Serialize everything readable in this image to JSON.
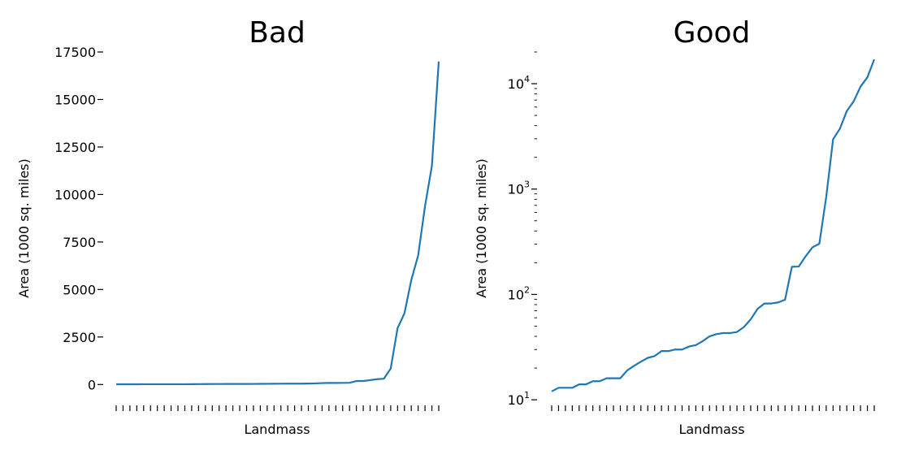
{
  "colors": {
    "line": "#1f77b4",
    "axis": "#000000",
    "background": "#ffffff"
  },
  "chart_data": [
    {
      "type": "line",
      "title": "Bad",
      "xlabel": "Landmass",
      "ylabel": "Area (1000 sq. miles)",
      "yscale": "linear",
      "ylim": [
        -800,
        17500
      ],
      "yticks": [
        0,
        2500,
        5000,
        7500,
        10000,
        12500,
        15000,
        17500
      ],
      "ytick_labels": [
        "0",
        "2500",
        "5000",
        "7500",
        "10000",
        "12500",
        "15000",
        "17500"
      ],
      "grid": false,
      "legend": "none",
      "x_tick_count": 48,
      "series": [
        {
          "color": "#1f77b4",
          "values": [
            12,
            13,
            13,
            13,
            14,
            14,
            15,
            15,
            16,
            16,
            16,
            19,
            21,
            23,
            25,
            26,
            29,
            29,
            30,
            30,
            32,
            33,
            36,
            40,
            42,
            43,
            43,
            44,
            49,
            58,
            73,
            82,
            82,
            84,
            89,
            183,
            184,
            230,
            280,
            303,
            840,
            2968,
            3745,
            5500,
            6795,
            9390,
            11500,
            17000
          ]
        }
      ]
    },
    {
      "type": "line",
      "title": "Good",
      "xlabel": "Landmass",
      "ylabel": "Area (1000 sq. miles)",
      "yscale": "log",
      "ylim": [
        9.5,
        20000
      ],
      "yticks": [
        10,
        100,
        1000,
        10000
      ],
      "ytick_labels": [
        {
          "base": "10",
          "exp": "1"
        },
        {
          "base": "10",
          "exp": "2"
        },
        {
          "base": "10",
          "exp": "3"
        },
        {
          "base": "10",
          "exp": "4"
        }
      ],
      "grid": false,
      "legend": "none",
      "x_tick_count": 48,
      "series": [
        {
          "color": "#1f77b4",
          "values": [
            12,
            13,
            13,
            13,
            14,
            14,
            15,
            15,
            16,
            16,
            16,
            19,
            21,
            23,
            25,
            26,
            29,
            29,
            30,
            30,
            32,
            33,
            36,
            40,
            42,
            43,
            43,
            44,
            49,
            58,
            73,
            82,
            82,
            84,
            89,
            183,
            184,
            230,
            280,
            303,
            840,
            2968,
            3745,
            5500,
            6795,
            9390,
            11500,
            17000
          ]
        }
      ]
    }
  ]
}
